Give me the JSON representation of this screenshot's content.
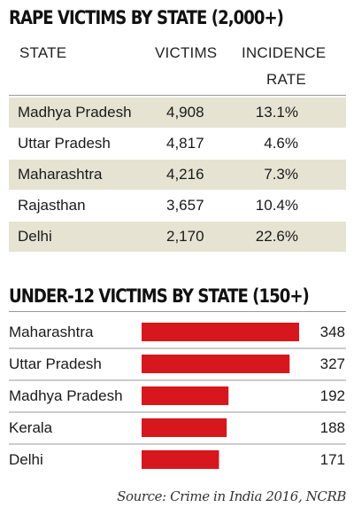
{
  "table": {
    "title": "RAPE VICTIMS BY STATE (2,000+)",
    "headers": {
      "state": "STATE",
      "victims": "VICTIMS",
      "rate_line1": "INCIDENCE",
      "rate_line2": "RATE"
    },
    "rows": [
      {
        "state": "Madhya Pradesh",
        "victims": "4,908",
        "rate": "13.1%"
      },
      {
        "state": "Uttar Pradesh",
        "victims": "4,817",
        "rate": "4.6%"
      },
      {
        "state": "Maharashtra",
        "victims": "4,216",
        "rate": "7.3%"
      },
      {
        "state": "Rajasthan",
        "victims": "3,657",
        "rate": "10.4%"
      },
      {
        "state": "Delhi",
        "victims": "2,170",
        "rate": "22.6%"
      }
    ]
  },
  "chart_data": {
    "type": "bar",
    "orientation": "horizontal",
    "title": "UNDER-12 VICTIMS BY STATE (150+)",
    "categories": [
      "Maharashtra",
      "Uttar Pradesh",
      "Madhya Pradesh",
      "Kerala",
      "Delhi"
    ],
    "values": [
      348,
      327,
      192,
      188,
      171
    ],
    "value_labels": [
      "348",
      "327",
      "192",
      "188",
      "171"
    ],
    "xlim": [
      0,
      348
    ],
    "grid": false,
    "bar_color": "#d7161e"
  },
  "source": "Source: Crime in India 2016, NCRB",
  "colors": {
    "row_shade": "#e6e3d3",
    "bar": "#d7161e",
    "divider": "#9a9a9a"
  }
}
